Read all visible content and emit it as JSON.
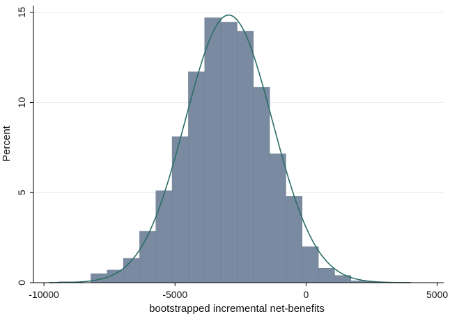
{
  "chart_data": {
    "type": "bar",
    "subtype": "histogram-with-normal-density",
    "xlabel": "bootstrapped incremental net-benefits",
    "ylabel": "Percent",
    "xlim": [
      -10400,
      5250
    ],
    "ylim": [
      0,
      15.3
    ],
    "x_ticks": [
      -10000,
      -5000,
      0,
      5000
    ],
    "x_tick_labels": [
      "-10000",
      "-5000",
      "0",
      "5000"
    ],
    "y_ticks": [
      0,
      5,
      10,
      15
    ],
    "y_tick_labels": [
      "0",
      "5",
      "10",
      "15"
    ],
    "grid": "horizontal",
    "bin_width": 620,
    "bins": [
      {
        "start": -9450,
        "end": -8830,
        "percent": 0.05
      },
      {
        "start": -8830,
        "end": -8210,
        "percent": 0.0
      },
      {
        "start": -8210,
        "end": -7590,
        "percent": 0.5
      },
      {
        "start": -7590,
        "end": -6970,
        "percent": 0.7
      },
      {
        "start": -6970,
        "end": -6350,
        "percent": 1.35
      },
      {
        "start": -6350,
        "end": -5730,
        "percent": 2.85
      },
      {
        "start": -5730,
        "end": -5110,
        "percent": 5.1
      },
      {
        "start": -5110,
        "end": -4490,
        "percent": 8.1
      },
      {
        "start": -4490,
        "end": -3870,
        "percent": 11.7
      },
      {
        "start": -3870,
        "end": -3250,
        "percent": 14.7
      },
      {
        "start": -3250,
        "end": -2630,
        "percent": 14.45
      },
      {
        "start": -2630,
        "end": -2010,
        "percent": 13.95
      },
      {
        "start": -2010,
        "end": -1390,
        "percent": 10.85
      },
      {
        "start": -1390,
        "end": -770,
        "percent": 7.15
      },
      {
        "start": -770,
        "end": -150,
        "percent": 4.8
      },
      {
        "start": -150,
        "end": 470,
        "percent": 2.0
      },
      {
        "start": 470,
        "end": 1090,
        "percent": 0.8
      },
      {
        "start": 1090,
        "end": 1710,
        "percent": 0.4
      },
      {
        "start": 1710,
        "end": 2330,
        "percent": 0.1
      },
      {
        "start": 2330,
        "end": 2950,
        "percent": 0.05
      }
    ],
    "normal_curve": {
      "mean": -2950,
      "peak_percent": 14.85,
      "sd": 1660
    },
    "colors": {
      "bars": "#7a8aa0",
      "bar_edge": "#6b7b92",
      "curve": "#2b6e66",
      "grid": "#e6ebef",
      "axis": "#000000",
      "background": "#ffffff"
    }
  }
}
